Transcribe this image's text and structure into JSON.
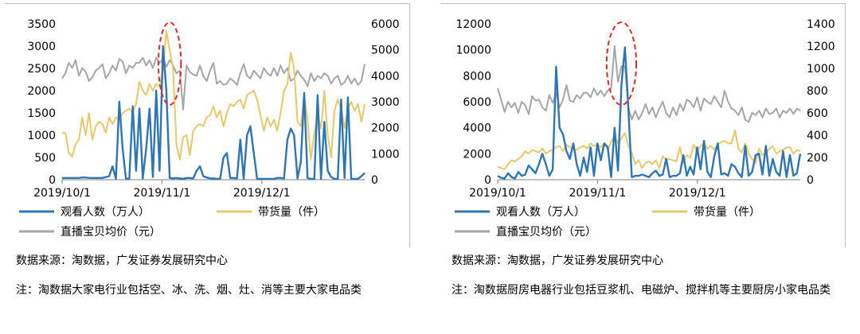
{
  "panels": [
    {
      "source": "数据来源：淘数据，广发证券发展研究中心",
      "note": "注：淘数据大家电行业包括空、冰、洗、烟、灶、消等主要大家电品类",
      "colors": {
        "viewers": "#2e75b6",
        "goods": "#e6c96a",
        "price": "#a6a6a6",
        "highlight": "#e8262a"
      },
      "chart_data": {
        "type": "line",
        "x_ticks": [
          "2019/10/1",
          "2019/11/1",
          "2019/12/1"
        ],
        "y_left": {
          "ticks": [
            "0",
            "500",
            "1000",
            "1500",
            "2000",
            "2500",
            "3000",
            "3500"
          ],
          "lim": [
            0,
            3500
          ]
        },
        "y_right": {
          "ticks": [
            "0",
            "1000",
            "2000",
            "3000",
            "4000",
            "5000",
            "6000"
          ],
          "lim": [
            0,
            6000
          ]
        },
        "legend": [
          {
            "key": "viewers",
            "label": "观看人数（万人）"
          },
          {
            "key": "goods",
            "label": "带货量（件）"
          },
          {
            "key": "price",
            "label": "直播宝贝均价（元）"
          }
        ],
        "series": [
          {
            "name": "观看人数（万人）",
            "key": "viewers",
            "axis": "left",
            "values": [
              40,
              40,
              40,
              40,
              40,
              40,
              50,
              50,
              40,
              40,
              40,
              40,
              40,
              60,
              80,
              300,
              20,
              1750,
              700,
              20,
              30,
              1650,
              200,
              1600,
              30,
              700,
              1600,
              60,
              2000,
              200,
              3000,
              2000,
              40,
              30,
              40,
              30,
              20,
              40,
              40,
              30,
              200,
              300,
              80,
              50,
              30,
              30,
              20,
              20,
              500,
              600,
              40,
              40,
              30,
              900,
              20,
              1000,
              1200,
              600,
              20,
              20,
              20,
              20,
              20,
              20,
              40,
              40,
              30,
              900,
              1150,
              1000,
              30,
              400,
              1950,
              40,
              20,
              20,
              1900,
              20,
              1300,
              200,
              60,
              20,
              20,
              1800,
              40,
              1850,
              20,
              20,
              20,
              80,
              150
            ]
          },
          {
            "name": "带货量（件）",
            "key": "goods",
            "axis": "left",
            "values": [
              1050,
              1050,
              600,
              520,
              800,
              900,
              1400,
              1000,
              1500,
              900,
              1200,
              1300,
              1250,
              1050,
              1400,
              1250,
              1400,
              1350,
              1500,
              1550,
              1600,
              1500,
              1700,
              2200,
              2000,
              1900,
              2150,
              2000,
              2150,
              2100,
              2450,
              3350,
              2900,
              2500,
              800,
              450,
              950,
              1000,
              550,
              1100,
              1200,
              1250,
              1200,
              1400,
              1450,
              1650,
              1400,
              1550,
              1200,
              1500,
              1700,
              1650,
              1750,
              1800,
              1600,
              1900,
              1950,
              2000,
              1800,
              1450,
              1100,
              1400,
              1200,
              1350,
              1100,
              1500,
              2000,
              2150,
              2850,
              2500,
              1300,
              1200,
              1900,
              1350,
              450,
              1050,
              1450,
              1150,
              2000,
              1000,
              500,
              1550,
              1800,
              1600,
              1150,
              1600,
              1750,
              1550,
              1700,
              1300,
              1700
            ]
          },
          {
            "name": "直播宝贝均价（元）",
            "key": "price",
            "axis": "right",
            "values": [
              3900,
              4100,
              4500,
              4300,
              4600,
              4000,
              4300,
              4150,
              3800,
              3950,
              4200,
              4300,
              4450,
              3900,
              4100,
              4400,
              4200,
              4650,
              4550,
              4100,
              4400,
              4300,
              4500,
              4500,
              4700,
              4400,
              4600,
              4300,
              4700,
              4500,
              4650,
              4350,
              4600,
              4400,
              4100,
              4200,
              2700,
              4400,
              4150,
              4050,
              4000,
              4400,
              4000,
              3800,
              4200,
              4500,
              3700,
              3800,
              3650,
              3700,
              3900,
              3800,
              3650,
              4100,
              4450,
              4000,
              3900,
              4200,
              4050,
              3900,
              4300,
              4100,
              4000,
              4300,
              4000,
              4400,
              4100,
              4300,
              3800,
              3900,
              4200,
              4000,
              3850,
              3600,
              4100,
              3800,
              4000,
              3900,
              4100,
              4000,
              3700,
              3900,
              4000,
              3650,
              3750,
              4000,
              3700,
              3900,
              3650,
              3800,
              4450
            ]
          }
        ],
        "highlight": {
          "from_index": 31,
          "to_index": 33
        }
      }
    },
    {
      "source": "数据来源：淘数据，广发证券发展研究中心",
      "note": "注：淘数据厨房电器行业包括豆浆机、电磁炉、搅拌机等主要厨房小家电品类",
      "colors": {
        "viewers": "#2e75b6",
        "goods": "#e6c96a",
        "price": "#a6a6a6",
        "highlight": "#e8262a"
      },
      "chart_data": {
        "type": "line",
        "x_ticks": [
          "2019/10/1",
          "2019/11/1",
          "2019/12/1"
        ],
        "y_left": {
          "ticks": [
            "0",
            "2000",
            "4000",
            "6000",
            "8000",
            "10000",
            "12000"
          ],
          "lim": [
            0,
            12000
          ]
        },
        "y_right": {
          "ticks": [
            "0",
            "200",
            "400",
            "600",
            "800",
            "1000",
            "1200",
            "1400"
          ],
          "lim": [
            0,
            1400
          ]
        },
        "legend": [
          {
            "key": "viewers",
            "label": "观看人数（万人）"
          },
          {
            "key": "goods",
            "label": "带货量（件）"
          },
          {
            "key": "price",
            "label": "直播宝贝均价（元）"
          }
        ],
        "series": [
          {
            "name": "观看人数（万人）",
            "key": "viewers",
            "axis": "left",
            "values": [
              300,
              150,
              100,
              500,
              200,
              100,
              600,
              300,
              400,
              1100,
              800,
              500,
              1200,
              2000,
              1200,
              300,
              800,
              8700,
              4000,
              3500,
              2200,
              1600,
              2800,
              1200,
              300,
              1700,
              600,
              2500,
              300,
              2800,
              1500,
              2800,
              2500,
              200,
              4000,
              700,
              7400,
              10200,
              5500,
              200,
              300,
              300,
              400,
              300,
              200,
              500,
              700,
              300,
              400,
              1600,
              200,
              300,
              300,
              500,
              1900,
              300,
              1000,
              400,
              2500,
              800,
              3000,
              600,
              200,
              1800,
              2800,
              400,
              500,
              300,
              1200,
              1000,
              500,
              200,
              2600,
              300,
              600,
              1900,
              2000,
              400,
              2600,
              300,
              1600,
              600,
              300,
              2200,
              200,
              1900,
              300,
              500,
              2000
            ]
          },
          {
            "name": "带货量（件）",
            "key": "goods",
            "axis": "left",
            "values": [
              1000,
              900,
              800,
              1200,
              1500,
              1400,
              1600,
              1800,
              2200,
              2000,
              2300,
              2200,
              2100,
              2400,
              2000,
              2200,
              2300,
              2500,
              2600,
              2200,
              2700,
              2500,
              2400,
              2300,
              2500,
              2600,
              2400,
              2800,
              2600,
              2700,
              2500,
              2800,
              2300,
              2900,
              3400,
              2800,
              3200,
              3600,
              2600,
              2100,
              1200,
              1500,
              900,
              1300,
              1400,
              1200,
              1500,
              900,
              1800,
              1500,
              1600,
              1500,
              1400,
              2500,
              1300,
              1900,
              1700,
              2700,
              2200,
              2600,
              2800,
              2400,
              2600,
              2300,
              2700,
              2900,
              3000,
              2800,
              2800,
              3800,
              2400,
              2100,
              2800,
              2000,
              1600,
              1300,
              2400,
              1900,
              2000,
              2400,
              2600,
              2000,
              2200,
              2300,
              2500,
              2500,
              2000,
              2300,
              2200
            ]
          },
          {
            "name": "直播宝贝均价（元）",
            "key": "price",
            "axis": "right",
            "values": [
              820,
              720,
              610,
              700,
              650,
              690,
              600,
              700,
              670,
              590,
              750,
              710,
              720,
              650,
              620,
              760,
              690,
              780,
              650,
              720,
              850,
              710,
              700,
              760,
              730,
              780,
              780,
              740,
              820,
              760,
              800,
              750,
              800,
              820,
              1200,
              880,
              1020,
              1020,
              650,
              540,
              620,
              540,
              600,
              680,
              590,
              650,
              560,
              640,
              700,
              600,
              560,
              650,
              580,
              680,
              620,
              720,
              700,
              650,
              740,
              620,
              730,
              700,
              680,
              750,
              700,
              650,
              800,
              700,
              640,
              620,
              580,
              650,
              540,
              520,
              600,
              580,
              620,
              560,
              640,
              590,
              600,
              640,
              560,
              620,
              600,
              640,
              590,
              640,
              620
            ]
          }
        ],
        "highlight": {
          "from_index": 34,
          "to_index": 38
        }
      }
    }
  ]
}
